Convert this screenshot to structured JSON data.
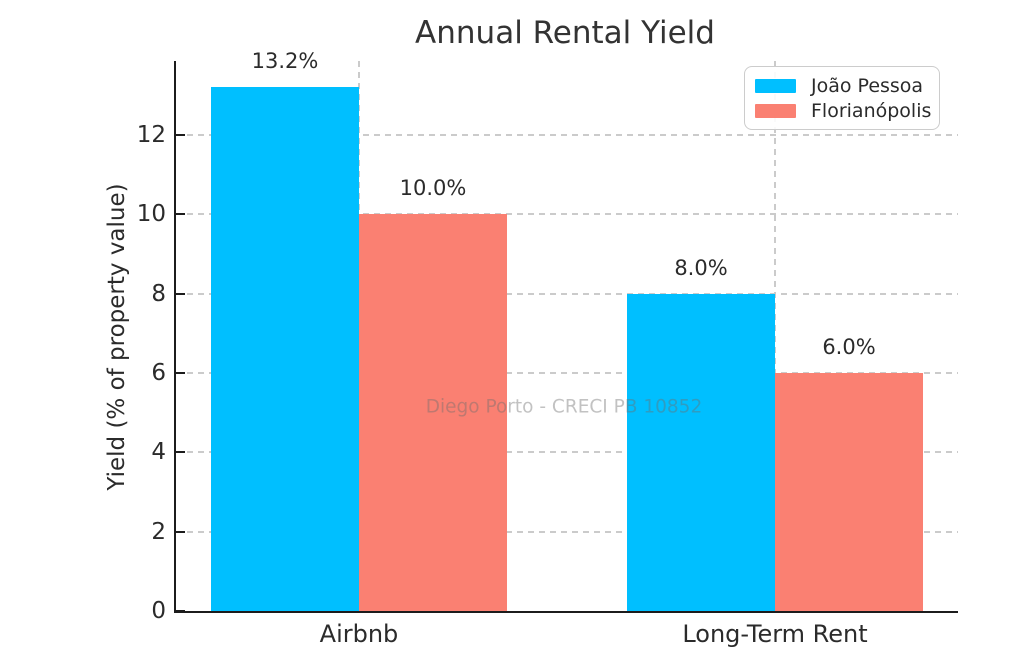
{
  "chart_data": {
    "type": "bar",
    "title": "Annual Rental Yield",
    "xlabel": "",
    "ylabel": "Yield (% of property value)",
    "categories": [
      "Airbnb",
      "Long-Term Rent"
    ],
    "series": [
      {
        "name": "João Pessoa",
        "color": "#00BFFF",
        "values": [
          13.2,
          8.0
        ],
        "labels": [
          "13.2%",
          "8.0%"
        ]
      },
      {
        "name": "Florianópolis",
        "color": "#FA8072",
        "values": [
          10.0,
          6.0
        ],
        "labels": [
          "10.0%",
          "6.0%"
        ]
      }
    ],
    "ylim": [
      0,
      13.86
    ],
    "yticks": [
      0,
      2,
      4,
      6,
      8,
      10,
      12
    ],
    "ytick_labels": [
      "0",
      "2",
      "4",
      "6",
      "8",
      "10",
      "12"
    ],
    "grid": true,
    "grid_style": "dashed",
    "grid_color": "#cbcbcb",
    "text_color": "#2b2b2b",
    "legend_position": "upper right",
    "watermark": "Diego Porto - CRECI PB 10852"
  }
}
